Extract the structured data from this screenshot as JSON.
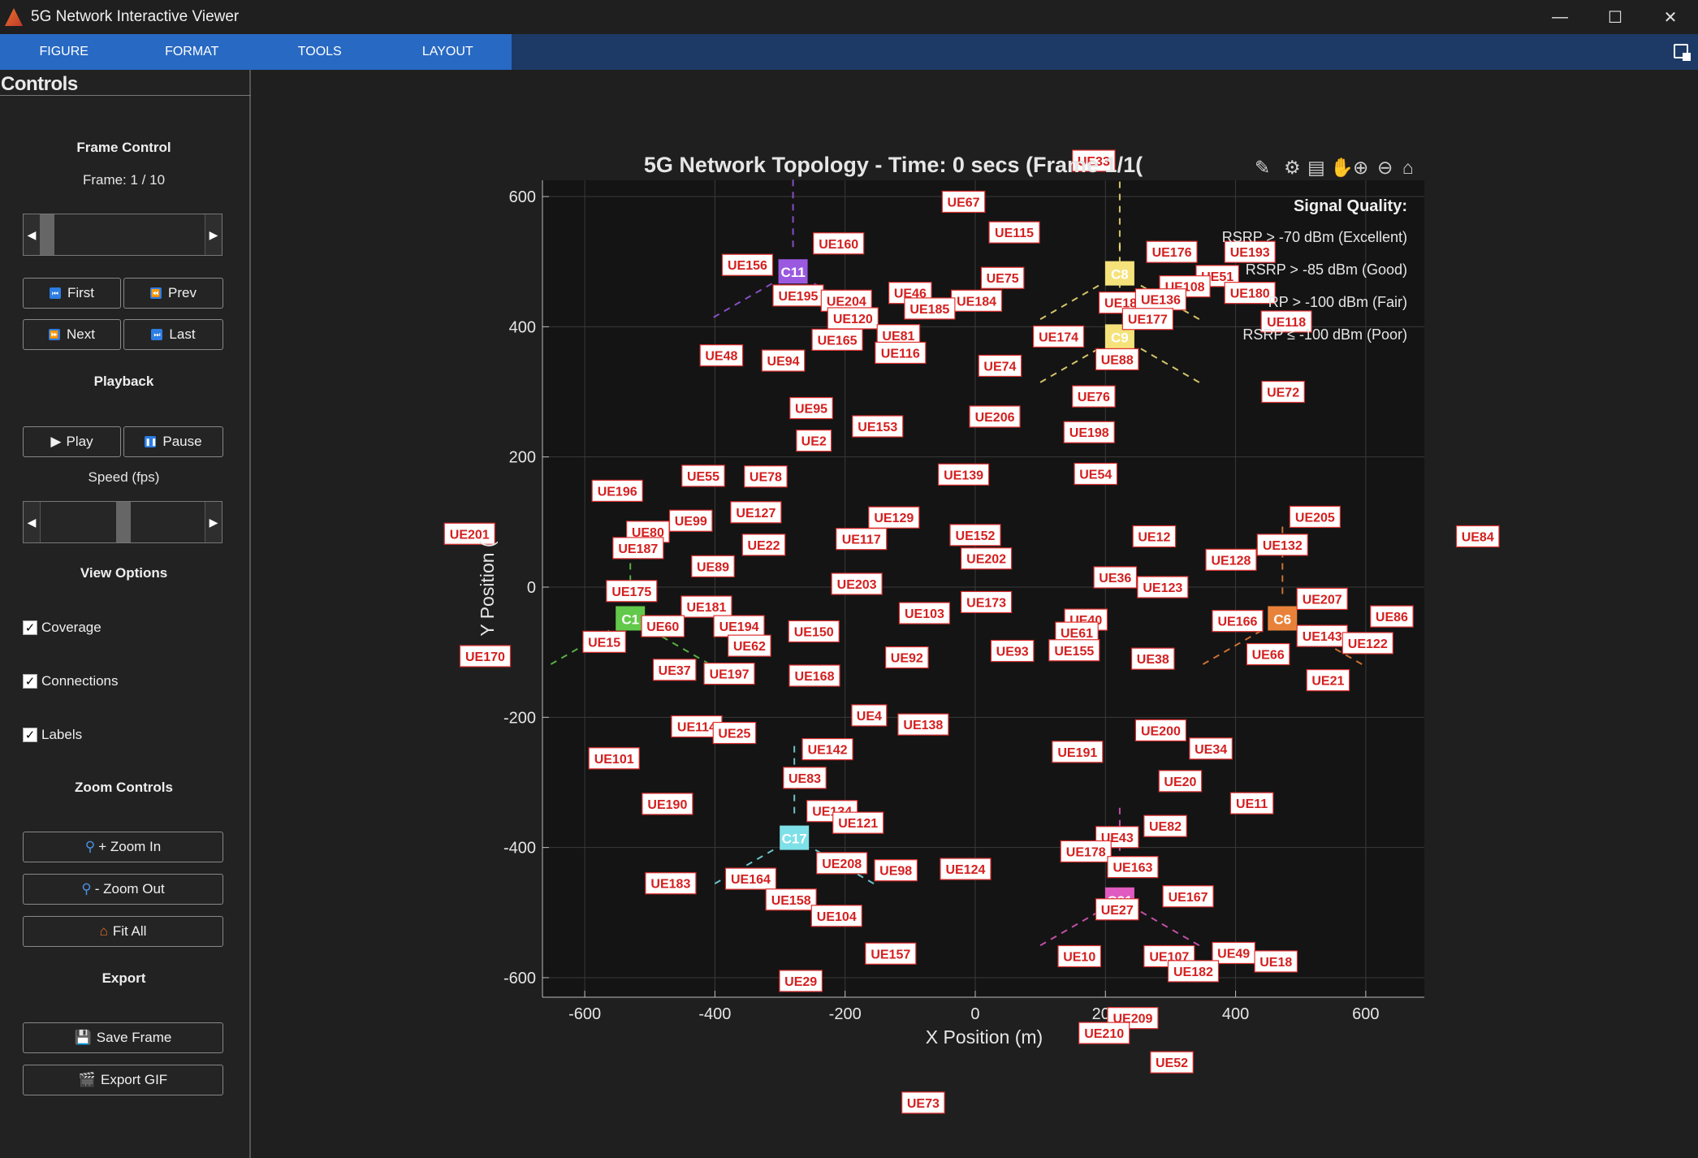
{
  "window": {
    "title": "5G Network Interactive Viewer"
  },
  "menu": {
    "tabs": [
      "FIGURE",
      "FORMAT",
      "TOOLS",
      "LAYOUT"
    ]
  },
  "controls": {
    "title": "Controls",
    "frame_control": {
      "heading": "Frame Control",
      "frame_label": "Frame: 1 / 10",
      "slider_fraction": 0.0
    },
    "nav": {
      "first": "First",
      "prev": "Prev",
      "next": "Next",
      "last": "Last"
    },
    "playback": {
      "heading": "Playback",
      "play": "Play",
      "pause": "Pause",
      "speed_label": "Speed (fps)",
      "speed_fraction": 0.5
    },
    "view_options": {
      "heading": "View Options",
      "coverage": "Coverage",
      "connections": "Connections",
      "labels": "Labels"
    },
    "zoom": {
      "heading": "Zoom Controls",
      "zoom_in": "+ Zoom In",
      "zoom_out": "- Zoom Out",
      "fit_all": "Fit All"
    },
    "export": {
      "heading": "Export",
      "save_frame": "Save Frame",
      "export_gif": "Export GIF"
    }
  },
  "chart_data": {
    "type": "scatter",
    "title": "5G Network Topology - Time: 0 sec",
    "title_suffix": "s (Frame 1/1(",
    "xlabel": "X Position (m)",
    "ylabel": "Y Position (",
    "xlim": [
      -665,
      690
    ],
    "ylim": [
      -630,
      625
    ],
    "xticks": [
      -600,
      -400,
      -200,
      0,
      200,
      400,
      600
    ],
    "yticks": [
      -600,
      -400,
      -200,
      0,
      200,
      400,
      600
    ],
    "grid": true,
    "legend": {
      "title": "Signal Quality:",
      "entries": [
        "RSRP > -70 dBm (Excellent)",
        "RSRP > -85 dBm (Good)",
        "RSRP > -100 dBm (Fair)",
        "RSRP ≤ -100 dBm (Poor)"
      ],
      "visible_text": [
        "RSRP > -70 dBm (Excellent)",
        "RSRP > -85 dBm (Good)",
        "RP > -100 dBm (Fair)",
        "RSRP ≤ -100 dBm (Poor)"
      ],
      "placement": "top-right"
    },
    "cells": [
      {
        "name": "C11",
        "x": -280,
        "y": 485,
        "color": "#9b59e0"
      },
      {
        "name": "C8",
        "x": 222,
        "y": 482,
        "color": "#f5e27a"
      },
      {
        "name": "C9",
        "x": 222,
        "y": 385,
        "color": "#f5e27a"
      },
      {
        "name": "C1",
        "x": -530,
        "y": -48,
        "color": "#63c94a"
      },
      {
        "name": "C6",
        "x": 472,
        "y": -48,
        "color": "#e8823a"
      },
      {
        "name": "C17",
        "x": -278,
        "y": -385,
        "color": "#7ee0e8"
      },
      {
        "name": "C21",
        "x": 222,
        "y": -480,
        "color": "#e05ac0"
      }
    ],
    "ues": [
      {
        "name": "UE67",
        "x": -18,
        "y": 592
      },
      {
        "name": "UE33",
        "x": 182,
        "y": 655
      },
      {
        "name": "UE115",
        "x": 60,
        "y": 545
      },
      {
        "name": "UE160",
        "x": -210,
        "y": 528
      },
      {
        "name": "UE156",
        "x": -350,
        "y": 495
      },
      {
        "name": "UE176",
        "x": 302,
        "y": 515
      },
      {
        "name": "UE193",
        "x": 422,
        "y": 515
      },
      {
        "name": "UE75",
        "x": 42,
        "y": 475
      },
      {
        "name": "UE51",
        "x": 372,
        "y": 478
      },
      {
        "name": "UE195",
        "x": -272,
        "y": 448
      },
      {
        "name": "UE204",
        "x": -198,
        "y": 440
      },
      {
        "name": "UE46",
        "x": -100,
        "y": 452
      },
      {
        "name": "UE184",
        "x": 2,
        "y": 440
      },
      {
        "name": "UE185",
        "x": -70,
        "y": 428
      },
      {
        "name": "UE182",
        "x": 229,
        "y": 437
      },
      {
        "name": "UE108",
        "x": 322,
        "y": 462
      },
      {
        "name": "UE180",
        "x": 422,
        "y": 452
      },
      {
        "name": "UE136",
        "x": 285,
        "y": 442
      },
      {
        "name": "UE120",
        "x": -188,
        "y": 413
      },
      {
        "name": "UE177",
        "x": 265,
        "y": 412
      },
      {
        "name": "UE118",
        "x": 478,
        "y": 408
      },
      {
        "name": "UE81",
        "x": -118,
        "y": 387
      },
      {
        "name": "UE174",
        "x": 128,
        "y": 385
      },
      {
        "name": "UE165",
        "x": -212,
        "y": 380
      },
      {
        "name": "UE116",
        "x": -115,
        "y": 360
      },
      {
        "name": "UE48",
        "x": -390,
        "y": 356
      },
      {
        "name": "UE94",
        "x": -295,
        "y": 348
      },
      {
        "name": "UE74",
        "x": 38,
        "y": 340
      },
      {
        "name": "UE88",
        "x": 218,
        "y": 350
      },
      {
        "name": "UE72",
        "x": 473,
        "y": 300
      },
      {
        "name": "UE76",
        "x": 182,
        "y": 293
      },
      {
        "name": "UE95",
        "x": -252,
        "y": 275
      },
      {
        "name": "UE206",
        "x": 30,
        "y": 262
      },
      {
        "name": "UE153",
        "x": -150,
        "y": 247
      },
      {
        "name": "UE198",
        "x": 175,
        "y": 238
      },
      {
        "name": "UE2",
        "x": -248,
        "y": 225
      },
      {
        "name": "UE55",
        "x": -418,
        "y": 171
      },
      {
        "name": "UE78",
        "x": -322,
        "y": 170
      },
      {
        "name": "UE139",
        "x": -18,
        "y": 173
      },
      {
        "name": "UE54",
        "x": 185,
        "y": 174
      },
      {
        "name": "UE196",
        "x": -550,
        "y": 148
      },
      {
        "name": "UE127",
        "x": -337,
        "y": 115
      },
      {
        "name": "UE205",
        "x": 522,
        "y": 108
      },
      {
        "name": "UE129",
        "x": -125,
        "y": 107
      },
      {
        "name": "UE99",
        "x": -437,
        "y": 102
      },
      {
        "name": "UE201",
        "x": -777,
        "y": 82
      },
      {
        "name": "UE80",
        "x": -503,
        "y": 85
      },
      {
        "name": "UE152",
        "x": 0,
        "y": 80
      },
      {
        "name": "UE12",
        "x": 275,
        "y": 78
      },
      {
        "name": "UE84",
        "x": 772,
        "y": 78
      },
      {
        "name": "UE117",
        "x": -175,
        "y": 74
      },
      {
        "name": "UE22",
        "x": -325,
        "y": 65
      },
      {
        "name": "UE132",
        "x": 472,
        "y": 65
      },
      {
        "name": "UE187",
        "x": -518,
        "y": 60
      },
      {
        "name": "UE128",
        "x": 393,
        "y": 42
      },
      {
        "name": "UE202",
        "x": 17,
        "y": 44
      },
      {
        "name": "UE89",
        "x": -403,
        "y": 32
      },
      {
        "name": "UE173",
        "x": 17,
        "y": -23
      },
      {
        "name": "UE36",
        "x": 215,
        "y": 15
      },
      {
        "name": "UE203",
        "x": -182,
        "y": 5
      },
      {
        "name": "UE123",
        "x": 288,
        "y": 0
      },
      {
        "name": "UE175",
        "x": -528,
        "y": -6
      },
      {
        "name": "UE207",
        "x": 533,
        "y": -18
      },
      {
        "name": "UE181",
        "x": -413,
        "y": -30
      },
      {
        "name": "UE103",
        "x": -78,
        "y": -40
      },
      {
        "name": "UE40",
        "x": 170,
        "y": -50
      },
      {
        "name": "UE166",
        "x": 403,
        "y": -52
      },
      {
        "name": "UE86",
        "x": 640,
        "y": -45
      },
      {
        "name": "UE194",
        "x": -363,
        "y": -60
      },
      {
        "name": "UE60",
        "x": -480,
        "y": -60
      },
      {
        "name": "UE150",
        "x": -248,
        "y": -68
      },
      {
        "name": "UE61",
        "x": 156,
        "y": -70
      },
      {
        "name": "UE143",
        "x": 533,
        "y": -75
      },
      {
        "name": "UE15",
        "x": -570,
        "y": -84
      },
      {
        "name": "UE62",
        "x": -347,
        "y": -90
      },
      {
        "name": "UE122",
        "x": 603,
        "y": -86
      },
      {
        "name": "UE93",
        "x": 57,
        "y": -98
      },
      {
        "name": "UE155",
        "x": 152,
        "y": -97
      },
      {
        "name": "UE170",
        "x": -753,
        "y": -106
      },
      {
        "name": "UE92",
        "x": -105,
        "y": -108
      },
      {
        "name": "UE38",
        "x": 273,
        "y": -110
      },
      {
        "name": "UE66",
        "x": 450,
        "y": -103
      },
      {
        "name": "UE37",
        "x": -462,
        "y": -127
      },
      {
        "name": "UE197",
        "x": -378,
        "y": -133
      },
      {
        "name": "UE168",
        "x": -247,
        "y": -136
      },
      {
        "name": "UE21",
        "x": 542,
        "y": -143
      },
      {
        "name": "UE4",
        "x": -163,
        "y": -197
      },
      {
        "name": "UE138",
        "x": -80,
        "y": -211
      },
      {
        "name": "UE114",
        "x": -428,
        "y": -214
      },
      {
        "name": "UE25",
        "x": -370,
        "y": -224
      },
      {
        "name": "UE200",
        "x": 285,
        "y": -220
      },
      {
        "name": "UE142",
        "x": -227,
        "y": -249
      },
      {
        "name": "UE34",
        "x": 362,
        "y": -248
      },
      {
        "name": "UE191",
        "x": 157,
        "y": -253
      },
      {
        "name": "UE101",
        "x": -555,
        "y": -263
      },
      {
        "name": "UE83",
        "x": -262,
        "y": -293
      },
      {
        "name": "UE20",
        "x": 315,
        "y": -298
      },
      {
        "name": "UE11",
        "x": 425,
        "y": -332
      },
      {
        "name": "UE190",
        "x": -473,
        "y": -333
      },
      {
        "name": "UE134",
        "x": -220,
        "y": -344
      },
      {
        "name": "UE121",
        "x": -180,
        "y": -362
      },
      {
        "name": "UE82",
        "x": 292,
        "y": -367
      },
      {
        "name": "UE43",
        "x": 218,
        "y": -384
      },
      {
        "name": "UE178",
        "x": 170,
        "y": -406
      },
      {
        "name": "UE208",
        "x": -205,
        "y": -424
      },
      {
        "name": "UE163",
        "x": 242,
        "y": -430
      },
      {
        "name": "UE98",
        "x": -122,
        "y": -435
      },
      {
        "name": "UE124",
        "x": -15,
        "y": -433
      },
      {
        "name": "UE164",
        "x": -345,
        "y": -448
      },
      {
        "name": "UE183",
        "x": -468,
        "y": -455
      },
      {
        "name": "UE167",
        "x": 327,
        "y": -475
      },
      {
        "name": "UE158",
        "x": -283,
        "y": -480
      },
      {
        "name": "UE27",
        "x": 218,
        "y": -495
      },
      {
        "name": "UE104",
        "x": -213,
        "y": -505
      },
      {
        "name": "UE157",
        "x": -130,
        "y": -563
      },
      {
        "name": "UE10",
        "x": 160,
        "y": -567
      },
      {
        "name": "UE107",
        "x": 298,
        "y": -567
      },
      {
        "name": "UE49",
        "x": 397,
        "y": -562
      },
      {
        "name": "UE18",
        "x": 462,
        "y": -575
      },
      {
        "name": "UE29",
        "x": -268,
        "y": -605
      },
      {
        "name": "UE182b",
        "x": 335,
        "y": -590
      },
      {
        "name": "UE209",
        "x": 242,
        "y": -662
      },
      {
        "name": "UE210",
        "x": 198,
        "y": -685
      },
      {
        "name": "UE52",
        "x": 302,
        "y": -730
      },
      {
        "name": "UE73",
        "x": -80,
        "y": -792
      }
    ]
  }
}
